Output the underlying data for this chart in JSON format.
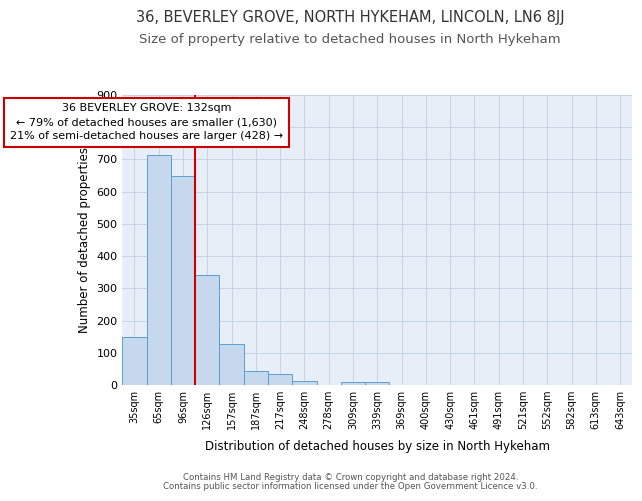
{
  "title": "36, BEVERLEY GROVE, NORTH HYKEHAM, LINCOLN, LN6 8JJ",
  "subtitle": "Size of property relative to detached houses in North Hykeham",
  "xlabel": "Distribution of detached houses by size in North Hykeham",
  "ylabel": "Number of detached properties",
  "categories": [
    "35sqm",
    "65sqm",
    "96sqm",
    "126sqm",
    "157sqm",
    "187sqm",
    "217sqm",
    "248sqm",
    "278sqm",
    "309sqm",
    "339sqm",
    "369sqm",
    "400sqm",
    "430sqm",
    "461sqm",
    "491sqm",
    "521sqm",
    "552sqm",
    "582sqm",
    "613sqm",
    "643sqm"
  ],
  "values": [
    150,
    715,
    650,
    340,
    127,
    42,
    35,
    12,
    0,
    9,
    8,
    0,
    0,
    0,
    0,
    0,
    0,
    0,
    0,
    0,
    0
  ],
  "bar_color": "#c5d8ed",
  "bar_edge_color": "#5a9fd4",
  "vline_index": 2.5,
  "vline_color": "#cc0000",
  "annotation_text": "36 BEVERLEY GROVE: 132sqm\n← 79% of detached houses are smaller (1,630)\n21% of semi-detached houses are larger (428) →",
  "annotation_box_color": "#ffffff",
  "annotation_box_edge": "#cc0000",
  "ylim": [
    0,
    900
  ],
  "yticks": [
    0,
    100,
    200,
    300,
    400,
    500,
    600,
    700,
    800,
    900
  ],
  "footer1": "Contains HM Land Registry data © Crown copyright and database right 2024.",
  "footer2": "Contains public sector information licensed under the Open Government Licence v3.0.",
  "bg_color": "#ffffff",
  "plot_bg_color": "#e8eef8",
  "grid_color": "#c0cfe0",
  "title_fontsize": 10.5,
  "subtitle_fontsize": 9.5,
  "annotation_fontsize": 8
}
